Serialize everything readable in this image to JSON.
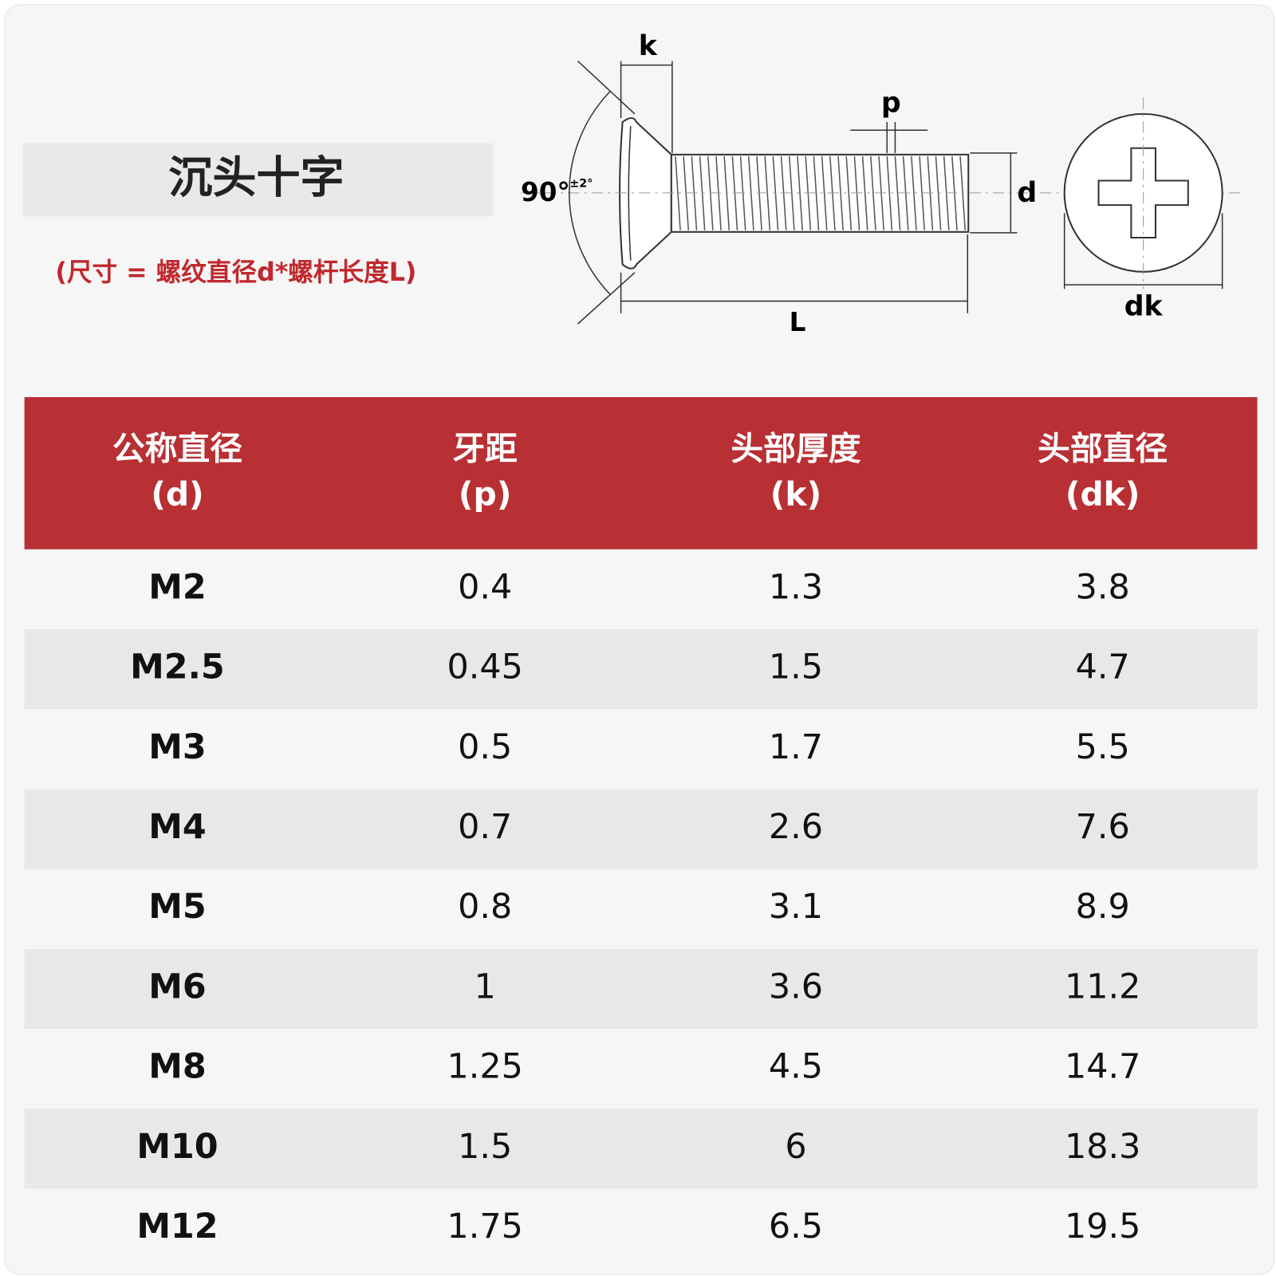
{
  "header": {
    "title": "沉头十字",
    "note": "(尺寸 = 螺纹直径d*螺杆长度L)"
  },
  "diagram": {
    "labels": {
      "k": "k",
      "p": "p",
      "d": "d",
      "L": "L",
      "dk": "dk",
      "angle": "90°",
      "tolerance": "±2°"
    }
  },
  "table": {
    "columns": [
      [
        "公称直径",
        "(d)"
      ],
      [
        "牙距",
        "(p)"
      ],
      [
        "头部厚度",
        "(k)"
      ],
      [
        "头部直径",
        "(dk)"
      ]
    ],
    "rows": [
      [
        "M2",
        "0.4",
        "1.3",
        "3.8"
      ],
      [
        "M2.5",
        "0.45",
        "1.5",
        "4.7"
      ],
      [
        "M3",
        "0.5",
        "1.7",
        "5.5"
      ],
      [
        "M4",
        "0.7",
        "2.6",
        "7.6"
      ],
      [
        "M5",
        "0.8",
        "3.1",
        "8.9"
      ],
      [
        "M6",
        "1",
        "3.6",
        "11.2"
      ],
      [
        "M8",
        "1.25",
        "4.5",
        "14.7"
      ],
      [
        "M10",
        "1.5",
        "6",
        "18.3"
      ],
      [
        "M12",
        "1.75",
        "6.5",
        "19.5"
      ]
    ]
  }
}
